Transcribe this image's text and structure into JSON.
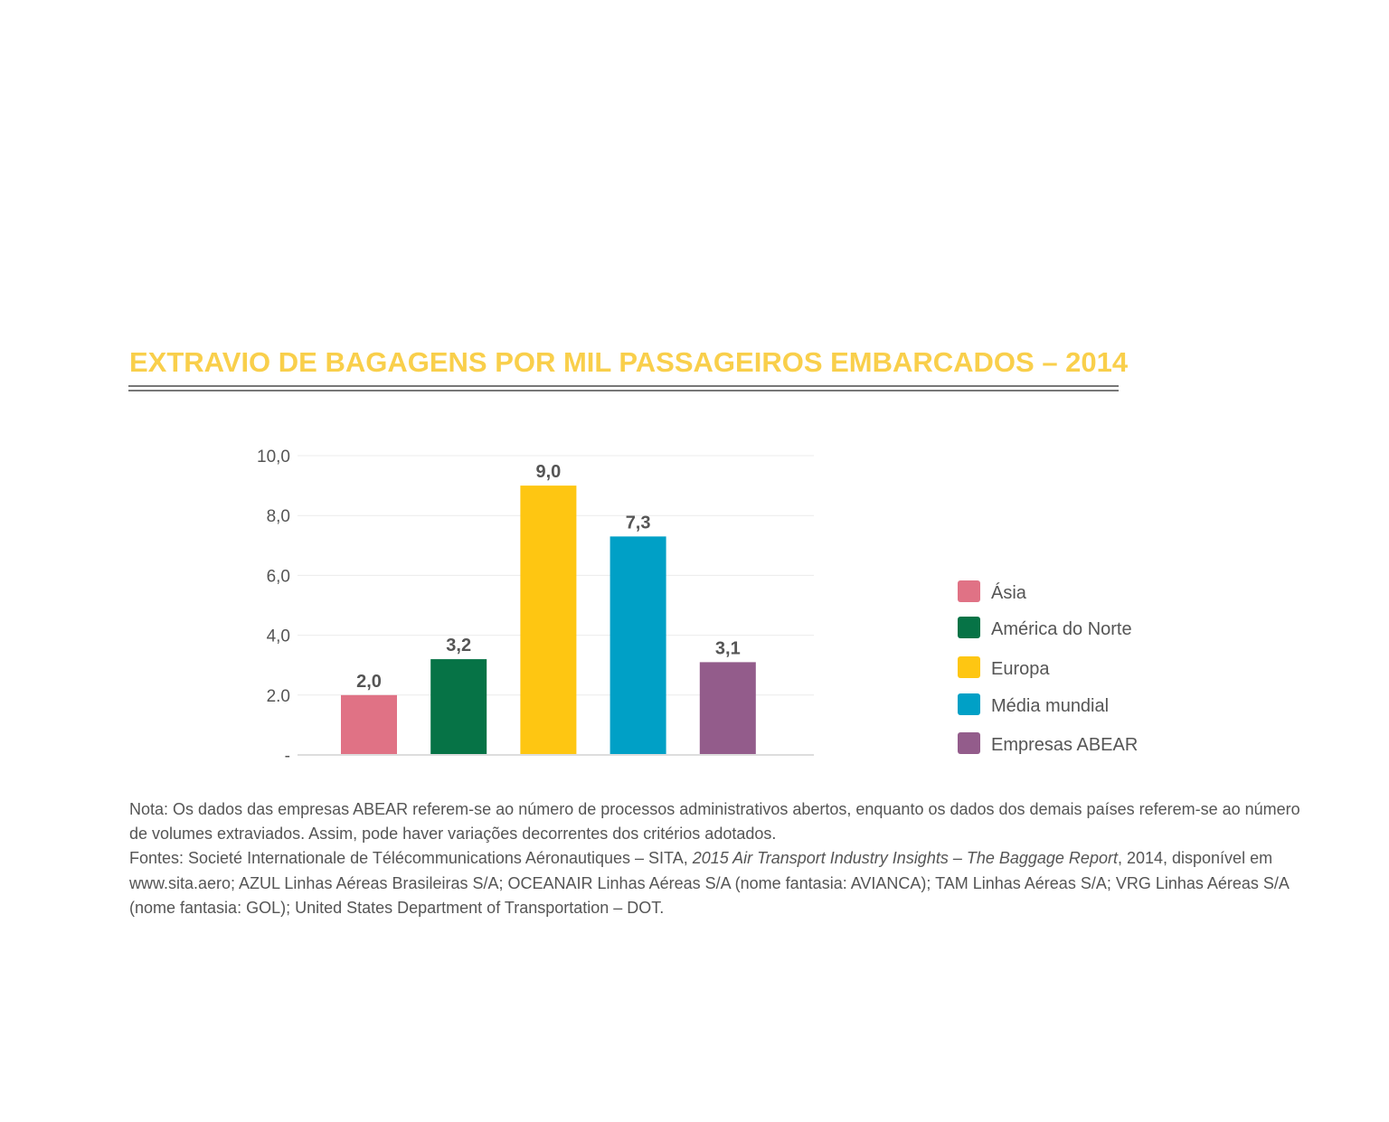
{
  "chart_data": {
    "type": "bar",
    "title": "EXTRAVIO DE BAGAGENS POR MIL PASSAGEIROS EMBARCADOS – 2014",
    "categories": [
      "Ásia",
      "América do Norte",
      "Europa",
      "Média mundial",
      "Empresas ABEAR"
    ],
    "values": [
      2.0,
      3.2,
      9.0,
      7.3,
      3.1
    ],
    "value_labels": [
      "2,0",
      "3,2",
      "9,0",
      "7,3",
      "3,1"
    ],
    "colors": [
      "#e07285",
      "#067346",
      "#fec612",
      "#00a0c6",
      "#935c8b"
    ],
    "ylim": [
      0,
      10
    ],
    "yticks": [
      0,
      2,
      4,
      6,
      8,
      10
    ],
    "ytick_labels": [
      "-",
      "2.0",
      "4,0",
      "6,0",
      "8,0",
      "10,0"
    ],
    "grid": true,
    "legend_position": "right"
  },
  "notes": {
    "nota": "Nota: Os dados das empresas ABEAR referem-se ao número de processos administrativos abertos, enquanto os dados dos demais países referem-se ao número de volumes extraviados. Assim, pode haver variações decorrentes dos critérios adotados.",
    "fontes_prefix": "Fontes: Societé Internationale de Télécommunications Aéronautiques – SITA, ",
    "fontes_italic": "2015 Air Transport Industry Insights – The Baggage Report",
    "fontes_suffix": ", 2014, disponível em www.sita.aero; AZUL Linhas Aéreas Brasileiras S/A; OCEANAIR Linhas Aéreas S/A (nome fantasia: AVIANCA); TAM Linhas Aéreas S/A; VRG Linhas Aéreas S/A (nome fantasia: GOL); United States Department of Transportation – DOT."
  }
}
